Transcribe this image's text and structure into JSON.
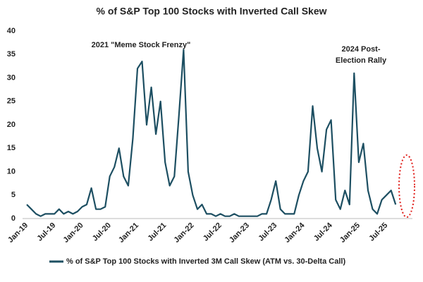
{
  "chart_data": {
    "type": "line",
    "title": "% of S&P Top 100 Stocks with Inverted Call Skew",
    "annotations": [
      "2021 \"Meme Stock Frenzy\"",
      "2024 Post-",
      "Election Rally"
    ],
    "categories": [
      "Jan-19",
      null,
      null,
      null,
      null,
      null,
      "Jul-19",
      null,
      null,
      null,
      null,
      null,
      "Jan-20",
      null,
      null,
      null,
      null,
      null,
      "Jul-20",
      null,
      null,
      null,
      null,
      null,
      "Jan-21",
      null,
      null,
      null,
      null,
      null,
      "Jul-21",
      null,
      null,
      null,
      null,
      null,
      "Jan-22",
      null,
      null,
      null,
      null,
      null,
      "Jul-22",
      null,
      null,
      null,
      null,
      null,
      "Jan-23",
      null,
      null,
      null,
      null,
      null,
      "Jul-23",
      null,
      null,
      null,
      null,
      null,
      "Jan-24",
      null,
      null,
      null,
      null,
      null,
      "Jul-24",
      null,
      null,
      null,
      null,
      null,
      "Jan-25",
      null,
      null,
      null,
      null,
      null,
      "Jul-25",
      null,
      null
    ],
    "series": [
      {
        "name": "% of S&P Top 100 Stocks with Inverted 3M Call Skew (ATM vs. 30-Delta Call)",
        "color": "#1d4f62",
        "values": [
          3,
          2,
          1,
          0.5,
          1,
          1,
          1,
          2,
          1,
          1.5,
          1,
          1.5,
          2.5,
          3,
          6.5,
          2,
          2,
          2.5,
          9,
          11,
          15,
          9,
          7,
          17,
          32,
          33.5,
          20,
          28,
          18,
          25,
          12,
          7,
          9,
          22,
          36,
          10,
          5,
          2,
          3,
          1,
          1,
          0.5,
          1,
          0.5,
          0.5,
          1,
          0.5,
          0.5,
          0.5,
          0.5,
          0.5,
          1,
          1,
          4,
          8,
          2,
          1,
          1,
          1,
          5,
          8,
          10,
          24,
          15,
          10,
          19,
          21,
          4,
          2,
          6,
          3,
          31,
          12,
          16,
          6,
          2,
          1,
          4,
          5,
          6,
          3
        ]
      }
    ],
    "ylim": [
      0,
      40
    ],
    "yticks": [
      0,
      5,
      10,
      15,
      20,
      25,
      30,
      35,
      40
    ],
    "grid": false
  }
}
